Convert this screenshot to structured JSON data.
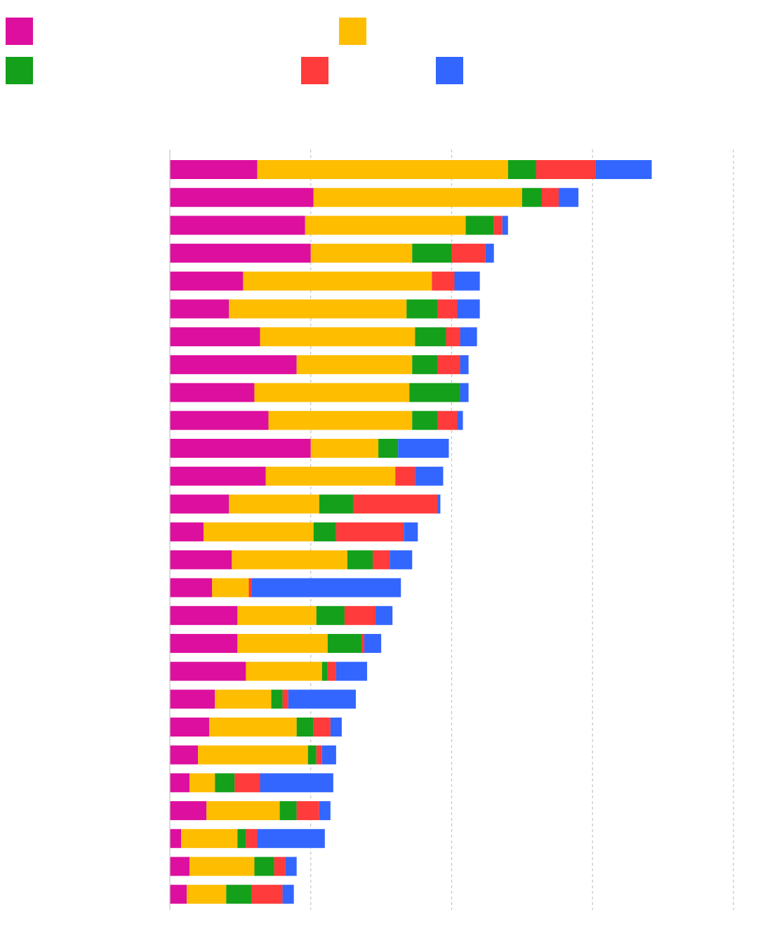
{
  "chart_data": {
    "type": "bar",
    "orientation": "horizontal",
    "stacked": true,
    "title": "",
    "xlabel": "",
    "ylabel": "",
    "xlim": [
      0,
      20
    ],
    "grid": true,
    "legend_position": "top-left",
    "categories": [
      "",
      "",
      "",
      "",
      "",
      "",
      "",
      "",
      "",
      "",
      "",
      "",
      "",
      "",
      "",
      "",
      "",
      "",
      "",
      "",
      "",
      "",
      "",
      "",
      "",
      "",
      ""
    ],
    "series": [
      {
        "name": "",
        "color": "#DD0F9E",
        "values": [
          3.1,
          5.1,
          4.8,
          5.0,
          2.6,
          2.1,
          3.2,
          4.5,
          3.0,
          3.5,
          5.0,
          3.4,
          2.1,
          1.2,
          2.2,
          1.5,
          2.4,
          2.4,
          2.7,
          1.6,
          1.4,
          1.0,
          0.7,
          1.3,
          0.4,
          0.7,
          0.6
        ]
      },
      {
        "name": "",
        "color": "#FFBD00",
        "values": [
          8.9,
          7.4,
          5.7,
          3.6,
          6.7,
          6.3,
          5.5,
          4.1,
          5.5,
          5.1,
          2.4,
          4.6,
          3.2,
          3.9,
          4.1,
          1.3,
          2.8,
          3.2,
          2.7,
          2.0,
          3.1,
          3.9,
          0.9,
          2.6,
          2.0,
          2.3,
          1.4
        ]
      },
      {
        "name": "",
        "color": "#14A01A",
        "values": [
          1.0,
          0.7,
          1.0,
          1.4,
          0.0,
          1.1,
          1.1,
          0.9,
          1.8,
          0.9,
          0.7,
          0.0,
          1.2,
          0.8,
          0.9,
          0.0,
          1.0,
          1.2,
          0.2,
          0.4,
          0.6,
          0.3,
          0.7,
          0.6,
          0.3,
          0.7,
          0.9
        ]
      },
      {
        "name": "",
        "color": "#FF3B3B",
        "values": [
          2.1,
          0.6,
          0.3,
          1.2,
          0.8,
          0.7,
          0.5,
          0.8,
          0.0,
          0.7,
          0.0,
          0.7,
          3.0,
          2.4,
          0.6,
          0.1,
          1.1,
          0.1,
          0.3,
          0.2,
          0.6,
          0.2,
          0.9,
          0.8,
          0.4,
          0.4,
          1.1
        ]
      },
      {
        "name": "",
        "color": "#3366FF",
        "values": [
          2.0,
          0.7,
          0.2,
          0.3,
          0.9,
          0.8,
          0.6,
          0.3,
          0.3,
          0.2,
          1.8,
          1.0,
          0.1,
          0.5,
          0.8,
          5.3,
          0.6,
          0.6,
          1.1,
          2.4,
          0.4,
          0.5,
          2.6,
          0.4,
          2.4,
          0.4,
          0.4
        ]
      }
    ]
  }
}
